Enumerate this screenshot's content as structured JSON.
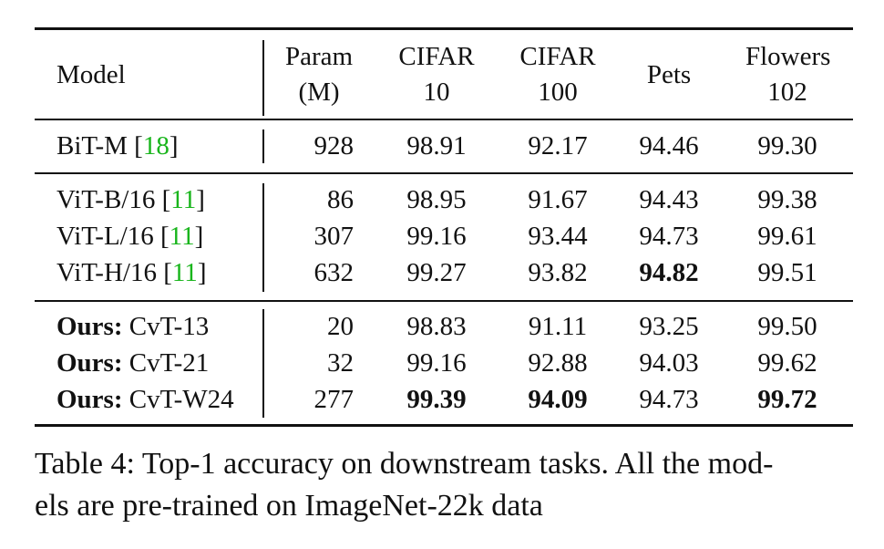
{
  "table": {
    "headers": {
      "model": "Model",
      "param_line1": "Param",
      "param_line2": "(M)",
      "cifar10_line1": "CIFAR",
      "cifar10_line2": "10",
      "cifar100_line1": "CIFAR",
      "cifar100_line2": "100",
      "pets": "Pets",
      "flowers_line1": "Flowers",
      "flowers_line2": "102"
    },
    "rows": [
      {
        "prefix": "",
        "model": "BiT-M [",
        "cite": "18",
        "suffix": "]",
        "param": "928",
        "cifar10": "98.91",
        "cifar100": "92.17",
        "pets": "94.46",
        "flowers": "99.30"
      },
      {
        "prefix": "",
        "model": "ViT-B/16 [",
        "cite": "11",
        "suffix": "]",
        "param": "86",
        "cifar10": "98.95",
        "cifar100": "91.67",
        "pets": "94.43",
        "flowers": "99.38"
      },
      {
        "prefix": "",
        "model": "ViT-L/16 [",
        "cite": "11",
        "suffix": "]",
        "param": "307",
        "cifar10": "99.16",
        "cifar100": "93.44",
        "pets": "94.73",
        "flowers": "99.61"
      },
      {
        "prefix": "",
        "model": "ViT-H/16 [",
        "cite": "11",
        "suffix": "]",
        "param": "632",
        "cifar10": "99.27",
        "cifar100": "93.82",
        "pets": "94.82",
        "flowers": "99.51"
      },
      {
        "prefix": "Ours:",
        "model": " CvT-13",
        "cite": "",
        "suffix": "",
        "param": "20",
        "cifar10": "98.83",
        "cifar100": "91.11",
        "pets": "93.25",
        "flowers": "99.50"
      },
      {
        "prefix": "Ours:",
        "model": " CvT-21",
        "cite": "",
        "suffix": "",
        "param": "32",
        "cifar10": "99.16",
        "cifar100": "92.88",
        "pets": "94.03",
        "flowers": "99.62"
      },
      {
        "prefix": "Ours:",
        "model": " CvT-W24",
        "cite": "",
        "suffix": "",
        "param": "277",
        "cifar10": "99.39",
        "cifar100": "94.09",
        "pets": "94.73",
        "flowers": "99.72"
      }
    ]
  },
  "caption": {
    "line1": "Table 4: Top-1 accuracy on downstream tasks. All the mod-",
    "line2": "els are pre-trained on ImageNet-22k data"
  },
  "colors": {
    "citation": "#19b51c"
  }
}
